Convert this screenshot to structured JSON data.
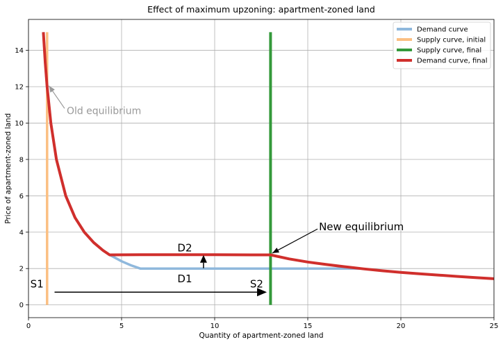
{
  "chart_data": {
    "type": "line",
    "title": "Effect of maximum upzoning: apartment-zoned land",
    "xlabel": "Quantity of apartment-zoned land",
    "ylabel": "Price of apartment-zoned land",
    "xlim": [
      0,
      25
    ],
    "ylim": [
      -0.7,
      15.7
    ],
    "grid": true,
    "legend_position": "top-right",
    "x_ticks": [
      0,
      5,
      10,
      15,
      20,
      25
    ],
    "y_ticks": [
      0,
      2,
      4,
      6,
      8,
      10,
      12,
      14
    ],
    "series": [
      {
        "name": "Demand curve",
        "color": "#8fb8dc",
        "points": [
          [
            0.8,
            15
          ],
          [
            0.9,
            13.33
          ],
          [
            1,
            12
          ],
          [
            1.2,
            10
          ],
          [
            1.5,
            8
          ],
          [
            2,
            6
          ],
          [
            2.5,
            4.8
          ],
          [
            3,
            4
          ],
          [
            3.5,
            3.43
          ],
          [
            4,
            3
          ],
          [
            4.4,
            2.73
          ],
          [
            5,
            2.4
          ],
          [
            5.5,
            2.18
          ],
          [
            6,
            2
          ],
          [
            8,
            2
          ],
          [
            10,
            2
          ],
          [
            12,
            2
          ],
          [
            14,
            2
          ],
          [
            16,
            2
          ],
          [
            17.9,
            2
          ]
        ]
      },
      {
        "name": "Supply curve, initial",
        "color": "#fbbf82",
        "points": [
          [
            1,
            0
          ],
          [
            1,
            15
          ]
        ]
      },
      {
        "name": "Supply curve, final",
        "color": "#33993a",
        "points": [
          [
            13,
            0
          ],
          [
            13,
            15
          ]
        ]
      },
      {
        "name": "Demand curve, final",
        "color": "#d02f2c",
        "points": [
          [
            0.8,
            15
          ],
          [
            0.9,
            13.33
          ],
          [
            1,
            12
          ],
          [
            1.2,
            10
          ],
          [
            1.5,
            8
          ],
          [
            2,
            6
          ],
          [
            2.5,
            4.8
          ],
          [
            3,
            4
          ],
          [
            3.5,
            3.43
          ],
          [
            4,
            3
          ],
          [
            4.36,
            2.75
          ],
          [
            6,
            2.76
          ],
          [
            8,
            2.76
          ],
          [
            10,
            2.76
          ],
          [
            12,
            2.75
          ],
          [
            13,
            2.75
          ],
          [
            14,
            2.53
          ],
          [
            15,
            2.36
          ],
          [
            16,
            2.22
          ],
          [
            17,
            2.1
          ],
          [
            18,
            1.98
          ],
          [
            19,
            1.88
          ],
          [
            20,
            1.79
          ],
          [
            21,
            1.71
          ],
          [
            22,
            1.64
          ],
          [
            23,
            1.57
          ],
          [
            24,
            1.5
          ],
          [
            25,
            1.44
          ]
        ]
      }
    ],
    "annotations": [
      {
        "text": "Old equilibrium",
        "x": 2.05,
        "y": 10.5,
        "arrow_to": [
          1.1,
          12.05
        ],
        "color": "#999999"
      },
      {
        "text": "New equilibrium",
        "x": 15.6,
        "y": 4.1,
        "arrow_to": [
          13.1,
          2.85
        ],
        "color": "#000000"
      },
      {
        "text": "D2",
        "x": 8.0,
        "y": 2.95
      },
      {
        "text": "D1",
        "x": 8.0,
        "y": 1.25
      },
      {
        "text": "S1",
        "x": 0.1,
        "y": 0.95
      },
      {
        "text": "S2",
        "x": 11.9,
        "y": 0.95
      }
    ],
    "arrows": [
      {
        "from": [
          1.4,
          0.7
        ],
        "to": [
          12.8,
          0.7
        ]
      },
      {
        "from": [
          9.4,
          2.02
        ],
        "to": [
          9.4,
          2.74
        ]
      }
    ]
  }
}
